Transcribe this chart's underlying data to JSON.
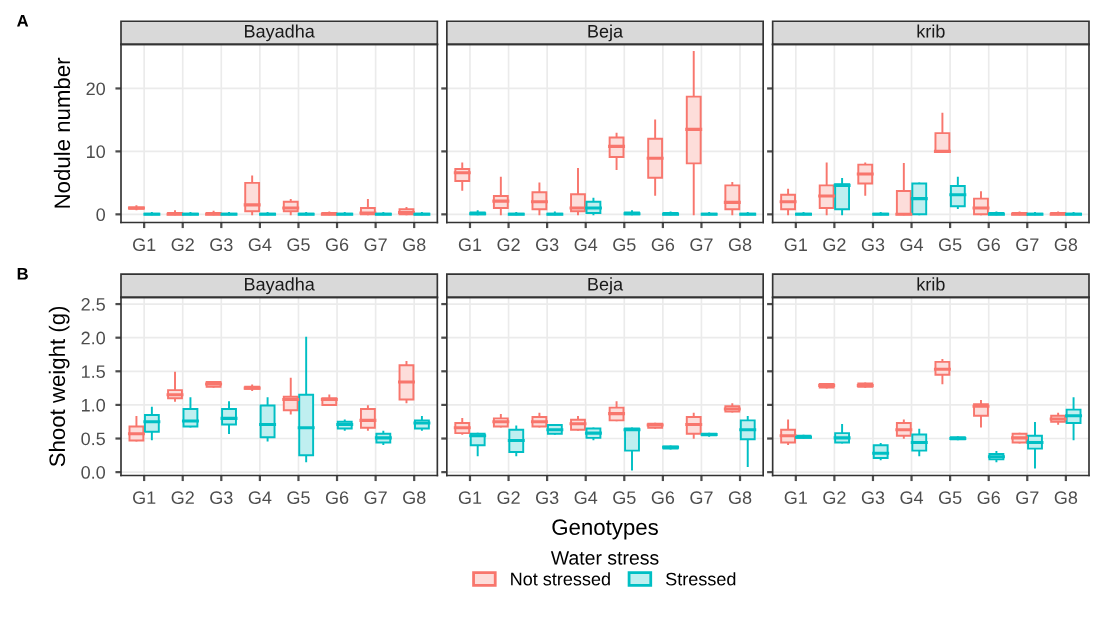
{
  "chart_data": [
    {
      "type": "box",
      "title": "Bayadha",
      "ylabel": "Nodule number",
      "annotations": [
        "A"
      ],
      "categories": [
        "G1",
        "G2",
        "G3",
        "G4",
        "G5",
        "G6",
        "G7",
        "G8"
      ],
      "ylim": [
        -1.3,
        27
      ],
      "yticks": [
        0,
        10,
        20
      ],
      "grid": true,
      "legend": false,
      "series": [
        {
          "color": "#f8766d",
          "boxes": [
            {
              "low": 0.8,
              "q1": 0.9,
              "median": 1,
              "q3": 1.1,
              "high": 1.3
            },
            {
              "low": 0,
              "q1": 0,
              "median": 0,
              "q3": 0.2,
              "high": 0.5
            },
            {
              "low": 0,
              "q1": 0,
              "median": 0,
              "q3": 0.2,
              "high": 0.4
            },
            {
              "low": 0,
              "q1": 0.5,
              "median": 1.5,
              "q3": 5,
              "high": 6
            },
            {
              "low": 0,
              "q1": 0.5,
              "median": 1,
              "q3": 2,
              "high": 2.3
            },
            {
              "low": 0,
              "q1": 0,
              "median": 0,
              "q3": 0.2,
              "high": 0.3
            },
            {
              "low": 0,
              "q1": 0,
              "median": 0.2,
              "q3": 1,
              "high": 2.3
            },
            {
              "low": 0,
              "q1": 0,
              "median": 0.3,
              "q3": 0.8,
              "high": 1
            }
          ]
        },
        {
          "color": "#00bfc4",
          "boxes": [
            {
              "low": 0,
              "q1": 0,
              "median": 0,
              "q3": 0.1,
              "high": 0.2
            },
            {
              "low": 0,
              "q1": 0,
              "median": 0,
              "q3": 0.1,
              "high": 0.2
            },
            {
              "low": 0,
              "q1": 0,
              "median": 0,
              "q3": 0.1,
              "high": 0.2
            },
            {
              "low": 0,
              "q1": 0,
              "median": 0,
              "q3": 0.1,
              "high": 0.2
            },
            {
              "low": 0,
              "q1": 0,
              "median": 0,
              "q3": 0.1,
              "high": 0.2
            },
            {
              "low": 0,
              "q1": 0,
              "median": 0,
              "q3": 0.1,
              "high": 0.2
            },
            {
              "low": 0,
              "q1": 0,
              "median": 0,
              "q3": 0.1,
              "high": 0.2
            },
            {
              "low": 0,
              "q1": 0,
              "median": 0,
              "q3": 0.1,
              "high": 0.2
            }
          ]
        }
      ]
    },
    {
      "type": "box",
      "title": "Beja",
      "categories": [
        "G1",
        "G2",
        "G3",
        "G4",
        "G5",
        "G6",
        "G7",
        "G8"
      ],
      "ylim": [
        -1.3,
        27
      ],
      "yticks": [
        0,
        10,
        20
      ],
      "tick_labels": "x",
      "grid": true,
      "legend": false,
      "series": [
        {
          "color": "#f8766d",
          "boxes": [
            {
              "low": 3.9,
              "q1": 5.3,
              "median": 6.6,
              "q3": 7.2,
              "high": 8.1
            },
            {
              "low": 0,
              "q1": 1,
              "median": 2.1,
              "q3": 2.9,
              "high": 5.8
            },
            {
              "low": 0,
              "q1": 0.8,
              "median": 2,
              "q3": 3.5,
              "high": 4.9
            },
            {
              "low": 0,
              "q1": 0.5,
              "median": 1,
              "q3": 3.2,
              "high": 7.2
            },
            {
              "low": 7.2,
              "q1": 9.1,
              "median": 10.8,
              "q3": 12.2,
              "high": 12.8
            },
            {
              "low": 3.1,
              "q1": 5.8,
              "median": 8.9,
              "q3": 12,
              "high": 14.9
            },
            {
              "low": 0,
              "q1": 8.1,
              "median": 13.5,
              "q3": 18.7,
              "high": 25.8
            },
            {
              "low": 0,
              "q1": 0.8,
              "median": 1.9,
              "q3": 4.6,
              "high": 5
            }
          ]
        },
        {
          "color": "#00bfc4",
          "boxes": [
            {
              "low": 0,
              "q1": 0,
              "median": 0.1,
              "q3": 0.3,
              "high": 0.5
            },
            {
              "low": 0,
              "q1": 0,
              "median": 0,
              "q3": 0.1,
              "high": 0.2
            },
            {
              "low": 0,
              "q1": 0,
              "median": 0,
              "q3": 0.1,
              "high": 0.3
            },
            {
              "low": 0,
              "q1": 0.2,
              "median": 1,
              "q3": 2,
              "high": 2.5
            },
            {
              "low": 0,
              "q1": 0,
              "median": 0.1,
              "q3": 0.3,
              "high": 0.5
            },
            {
              "low": 0,
              "q1": 0,
              "median": 0,
              "q3": 0.2,
              "high": 0.3
            },
            {
              "low": 0,
              "q1": 0,
              "median": 0,
              "q3": 0.1,
              "high": 0.2
            },
            {
              "low": 0,
              "q1": 0,
              "median": 0,
              "q3": 0.1,
              "high": 0.2
            }
          ]
        }
      ]
    },
    {
      "type": "box",
      "title": "krib",
      "categories": [
        "G1",
        "G2",
        "G3",
        "G4",
        "G5",
        "G6",
        "G7",
        "G8"
      ],
      "ylim": [
        -1.3,
        27
      ],
      "yticks": [
        0,
        10,
        20
      ],
      "tick_labels": "x",
      "grid": true,
      "legend": false,
      "series": [
        {
          "color": "#f8766d",
          "boxes": [
            {
              "low": 0,
              "q1": 0.8,
              "median": 2,
              "q3": 3.1,
              "high": 3.9
            },
            {
              "low": 0,
              "q1": 1,
              "median": 2.9,
              "q3": 4.6,
              "high": 8.1
            },
            {
              "low": 3.1,
              "q1": 4.9,
              "median": 6.4,
              "q3": 7.9,
              "high": 8.1
            },
            {
              "low": 0,
              "q1": 0,
              "median": 0,
              "q3": 3.7,
              "high": 8
            },
            {
              "low": 9.9,
              "q1": 9.9,
              "median": 10,
              "q3": 12.9,
              "high": 16
            },
            {
              "low": 0,
              "q1": 0,
              "median": 1,
              "q3": 2.5,
              "high": 3.5
            },
            {
              "low": 0,
              "q1": 0,
              "median": 0,
              "q3": 0.2,
              "high": 0.3
            },
            {
              "low": 0,
              "q1": 0,
              "median": 0,
              "q3": 0.2,
              "high": 0.3
            }
          ]
        },
        {
          "color": "#00bfc4",
          "boxes": [
            {
              "low": 0,
              "q1": 0,
              "median": 0,
              "q3": 0.1,
              "high": 0.2
            },
            {
              "low": 0,
              "q1": 0.8,
              "median": 4.6,
              "q3": 4.8,
              "high": 5.6
            },
            {
              "low": 0,
              "q1": 0,
              "median": 0,
              "q3": 0.1,
              "high": 0.2
            },
            {
              "low": 0,
              "q1": 0,
              "median": 2.5,
              "q3": 4.9,
              "high": 4.9
            },
            {
              "low": 1,
              "q1": 1.3,
              "median": 3.1,
              "q3": 4.5,
              "high": 5.8
            },
            {
              "low": 0,
              "q1": 0,
              "median": 0,
              "q3": 0.2,
              "high": 0.3
            },
            {
              "low": 0,
              "q1": 0,
              "median": 0,
              "q3": 0.1,
              "high": 0.2
            },
            {
              "low": 0,
              "q1": 0,
              "median": 0,
              "q3": 0.1,
              "high": 0.2
            }
          ]
        }
      ]
    },
    {
      "type": "box",
      "title": "Bayadha",
      "ylabel": "Shoot weight (g)",
      "annotations": [
        "B"
      ],
      "categories": [
        "G1",
        "G2",
        "G3",
        "G4",
        "G5",
        "G6",
        "G7",
        "G8"
      ],
      "ylim": [
        -0.05,
        2.6
      ],
      "yticks": [
        {
          "value": 0,
          "label": "0.0"
        },
        {
          "value": 0.5,
          "label": "0.5"
        },
        {
          "value": 1,
          "label": "1.0"
        },
        {
          "value": 1.5,
          "label": "1.5"
        },
        {
          "value": 2,
          "label": "2.0"
        },
        {
          "value": 2.5,
          "label": "2.5"
        }
      ],
      "grid": true,
      "legend": false,
      "series": [
        {
          "color": "#f8766d",
          "boxes": [
            {
              "low": 0.47,
              "q1": 0.47,
              "median": 0.57,
              "q3": 0.68,
              "high": 0.82
            },
            {
              "low": 1.06,
              "q1": 1.1,
              "median": 1.15,
              "q3": 1.22,
              "high": 1.48
            },
            {
              "low": 1.27,
              "q1": 1.27,
              "median": 1.31,
              "q3": 1.34,
              "high": 1.34
            },
            {
              "low": 1.22,
              "q1": 1.24,
              "median": 1.25,
              "q3": 1.27,
              "high": 1.29
            },
            {
              "low": 0.87,
              "q1": 0.92,
              "median": 1.08,
              "q3": 1.12,
              "high": 1.39
            },
            {
              "low": 1,
              "q1": 1,
              "median": 1.08,
              "q3": 1.1,
              "high": 1.14
            },
            {
              "low": 0.63,
              "q1": 0.66,
              "median": 0.77,
              "q3": 0.94,
              "high": 0.98
            },
            {
              "low": 1.04,
              "q1": 1.08,
              "median": 1.34,
              "q3": 1.59,
              "high": 1.64
            }
          ]
        },
        {
          "color": "#00bfc4",
          "boxes": [
            {
              "low": 0.49,
              "q1": 0.6,
              "median": 0.75,
              "q3": 0.85,
              "high": 0.96
            },
            {
              "low": 0.68,
              "q1": 0.68,
              "median": 0.76,
              "q3": 0.94,
              "high": 1.1
            },
            {
              "low": 0.58,
              "q1": 0.71,
              "median": 0.8,
              "q3": 0.94,
              "high": 1.04
            },
            {
              "low": 0.47,
              "q1": 0.52,
              "median": 0.71,
              "q3": 0.99,
              "high": 1.1
            },
            {
              "low": 0.16,
              "q1": 0.25,
              "median": 0.66,
              "q3": 1.15,
              "high": 2
            },
            {
              "low": 0.63,
              "q1": 0.65,
              "median": 0.71,
              "q3": 0.75,
              "high": 0.77
            },
            {
              "low": 0.42,
              "q1": 0.44,
              "median": 0.51,
              "q3": 0.57,
              "high": 0.6
            },
            {
              "low": 0.63,
              "q1": 0.65,
              "median": 0.73,
              "q3": 0.77,
              "high": 0.82
            }
          ]
        }
      ]
    },
    {
      "type": "box",
      "title": "Beja",
      "xlabel": "Genotypes",
      "legend_title": "Water stress",
      "categories": [
        "G1",
        "G2",
        "G3",
        "G4",
        "G5",
        "G6",
        "G7",
        "G8"
      ],
      "ylim": [
        -0.05,
        2.6
      ],
      "yticks": [
        0,
        0.5,
        1,
        1.5,
        2,
        2.5
      ],
      "tick_labels": "x",
      "grid": true,
      "legend": "bottom",
      "series": [
        {
          "name": "Not stressed",
          "color": "#f8766d",
          "boxes": [
            {
              "low": 0.57,
              "q1": 0.58,
              "median": 0.66,
              "q3": 0.73,
              "high": 0.79
            },
            {
              "low": 0.68,
              "q1": 0.68,
              "median": 0.75,
              "q3": 0.8,
              "high": 0.85
            },
            {
              "low": 0.68,
              "q1": 0.68,
              "median": 0.75,
              "q3": 0.82,
              "high": 0.87
            },
            {
              "low": 0.63,
              "q1": 0.63,
              "median": 0.72,
              "q3": 0.78,
              "high": 0.82
            },
            {
              "low": 0.77,
              "q1": 0.77,
              "median": 0.87,
              "q3": 0.96,
              "high": 1.04
            },
            {
              "low": 0.66,
              "q1": 0.66,
              "median": 0.7,
              "q3": 0.72,
              "high": 0.72
            },
            {
              "low": 0.51,
              "q1": 0.57,
              "median": 0.71,
              "q3": 0.82,
              "high": 0.87
            },
            {
              "low": 0.9,
              "q1": 0.9,
              "median": 0.94,
              "q3": 0.98,
              "high": 1.01
            }
          ]
        },
        {
          "name": "Stressed",
          "color": "#00bfc4",
          "boxes": [
            {
              "low": 0.25,
              "q1": 0.4,
              "median": 0.54,
              "q3": 0.57,
              "high": 0.57
            },
            {
              "low": 0.25,
              "q1": 0.3,
              "median": 0.47,
              "q3": 0.63,
              "high": 0.68
            },
            {
              "low": 0.57,
              "q1": 0.57,
              "median": 0.63,
              "q3": 0.7,
              "high": 0.7
            },
            {
              "low": 0.49,
              "q1": 0.51,
              "median": 0.58,
              "q3": 0.65,
              "high": 0.65
            },
            {
              "low": 0.04,
              "q1": 0.32,
              "median": 0.63,
              "q3": 0.65,
              "high": 0.65
            },
            {
              "low": 0.35,
              "q1": 0.35,
              "median": 0.37,
              "q3": 0.38,
              "high": 0.38
            },
            {
              "low": 0.54,
              "q1": 0.55,
              "median": 0.56,
              "q3": 0.57,
              "high": 0.57
            },
            {
              "low": 0.09,
              "q1": 0.49,
              "median": 0.63,
              "q3": 0.77,
              "high": 0.82
            }
          ]
        }
      ]
    },
    {
      "type": "box",
      "title": "krib",
      "categories": [
        "G1",
        "G2",
        "G3",
        "G4",
        "G5",
        "G6",
        "G7",
        "G8"
      ],
      "ylim": [
        -0.05,
        2.6
      ],
      "yticks": [
        0,
        0.5,
        1,
        1.5,
        2,
        2.5
      ],
      "tick_labels": "x",
      "grid": true,
      "legend": false,
      "series": [
        {
          "color": "#f8766d",
          "boxes": [
            {
              "low": 0.42,
              "q1": 0.44,
              "median": 0.54,
              "q3": 0.63,
              "high": 0.77
            },
            {
              "low": 1.26,
              "q1": 1.26,
              "median": 1.29,
              "q3": 1.31,
              "high": 1.31
            },
            {
              "low": 1.27,
              "q1": 1.27,
              "median": 1.29,
              "q3": 1.32,
              "high": 1.32
            },
            {
              "low": 0.51,
              "q1": 0.54,
              "median": 0.63,
              "q3": 0.73,
              "high": 0.77
            },
            {
              "low": 1.32,
              "q1": 1.45,
              "median": 1.53,
              "q3": 1.64,
              "high": 1.67
            },
            {
              "low": 0.68,
              "q1": 0.84,
              "median": 0.98,
              "q3": 1.01,
              "high": 1.06
            },
            {
              "low": 0.44,
              "q1": 0.44,
              "median": 0.51,
              "q3": 0.57,
              "high": 0.57
            },
            {
              "low": 0.72,
              "q1": 0.75,
              "median": 0.79,
              "q3": 0.84,
              "high": 0.87
            }
          ]
        },
        {
          "color": "#00bfc4",
          "boxes": [
            {
              "low": 0.51,
              "q1": 0.51,
              "median": 0.52,
              "q3": 0.54,
              "high": 0.54
            },
            {
              "low": 0.44,
              "q1": 0.44,
              "median": 0.51,
              "q3": 0.58,
              "high": 0.7
            },
            {
              "low": 0.19,
              "q1": 0.21,
              "median": 0.28,
              "q3": 0.4,
              "high": 0.42
            },
            {
              "low": 0.25,
              "q1": 0.32,
              "median": 0.44,
              "q3": 0.56,
              "high": 0.63
            },
            {
              "low": 0.49,
              "q1": 0.49,
              "median": 0.5,
              "q3": 0.52,
              "high": 0.52
            },
            {
              "low": 0.16,
              "q1": 0.19,
              "median": 0.23,
              "q3": 0.27,
              "high": 0.3
            },
            {
              "low": 0.07,
              "q1": 0.35,
              "median": 0.44,
              "q3": 0.54,
              "high": 0.73
            },
            {
              "low": 0.49,
              "q1": 0.73,
              "median": 0.84,
              "q3": 0.93,
              "high": 1.1
            }
          ]
        }
      ]
    }
  ]
}
